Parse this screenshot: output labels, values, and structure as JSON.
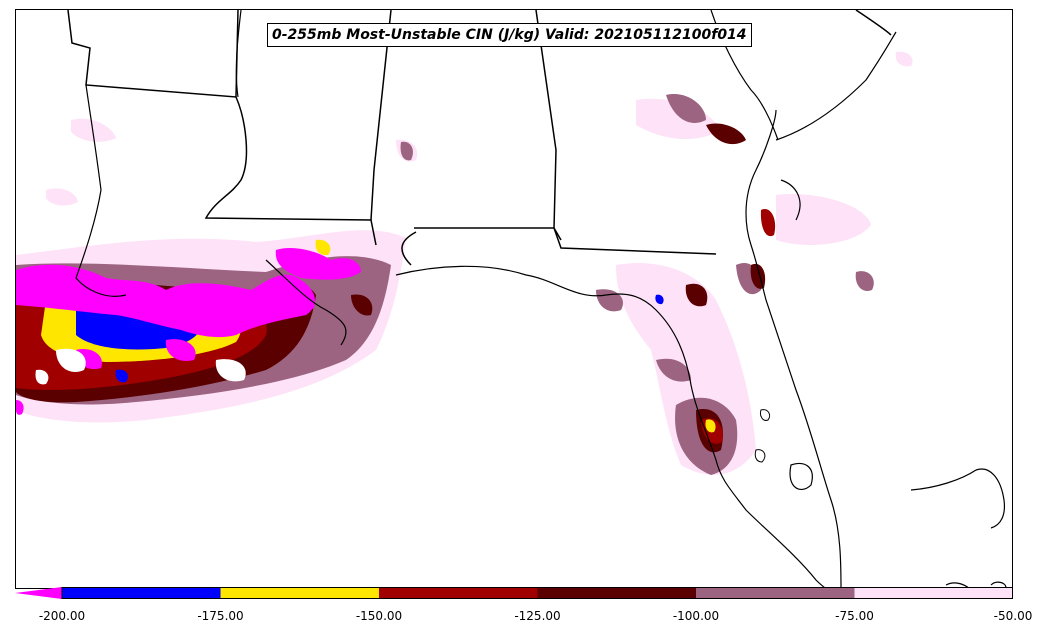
{
  "title": "0-255mb Most-Unstable CIN (J/kg) Valid: 202105112100f014",
  "colorbar": {
    "extend_color": "#ff00ff",
    "bins": [
      {
        "from": -200,
        "to": -175,
        "color": "#0000ff"
      },
      {
        "from": -175,
        "to": -150,
        "color": "#ffe600"
      },
      {
        "from": -150,
        "to": -125,
        "color": "#a00000"
      },
      {
        "from": -125,
        "to": -100,
        "color": "#5a0000"
      },
      {
        "from": -100,
        "to": -75,
        "color": "#9c6480"
      },
      {
        "from": -75,
        "to": -50,
        "color": "#fde2f8"
      }
    ],
    "ticks": [
      "-200.00",
      "-175.00",
      "-150.00",
      "-125.00",
      "-100.00",
      "-75.00",
      "-50.00"
    ]
  }
}
